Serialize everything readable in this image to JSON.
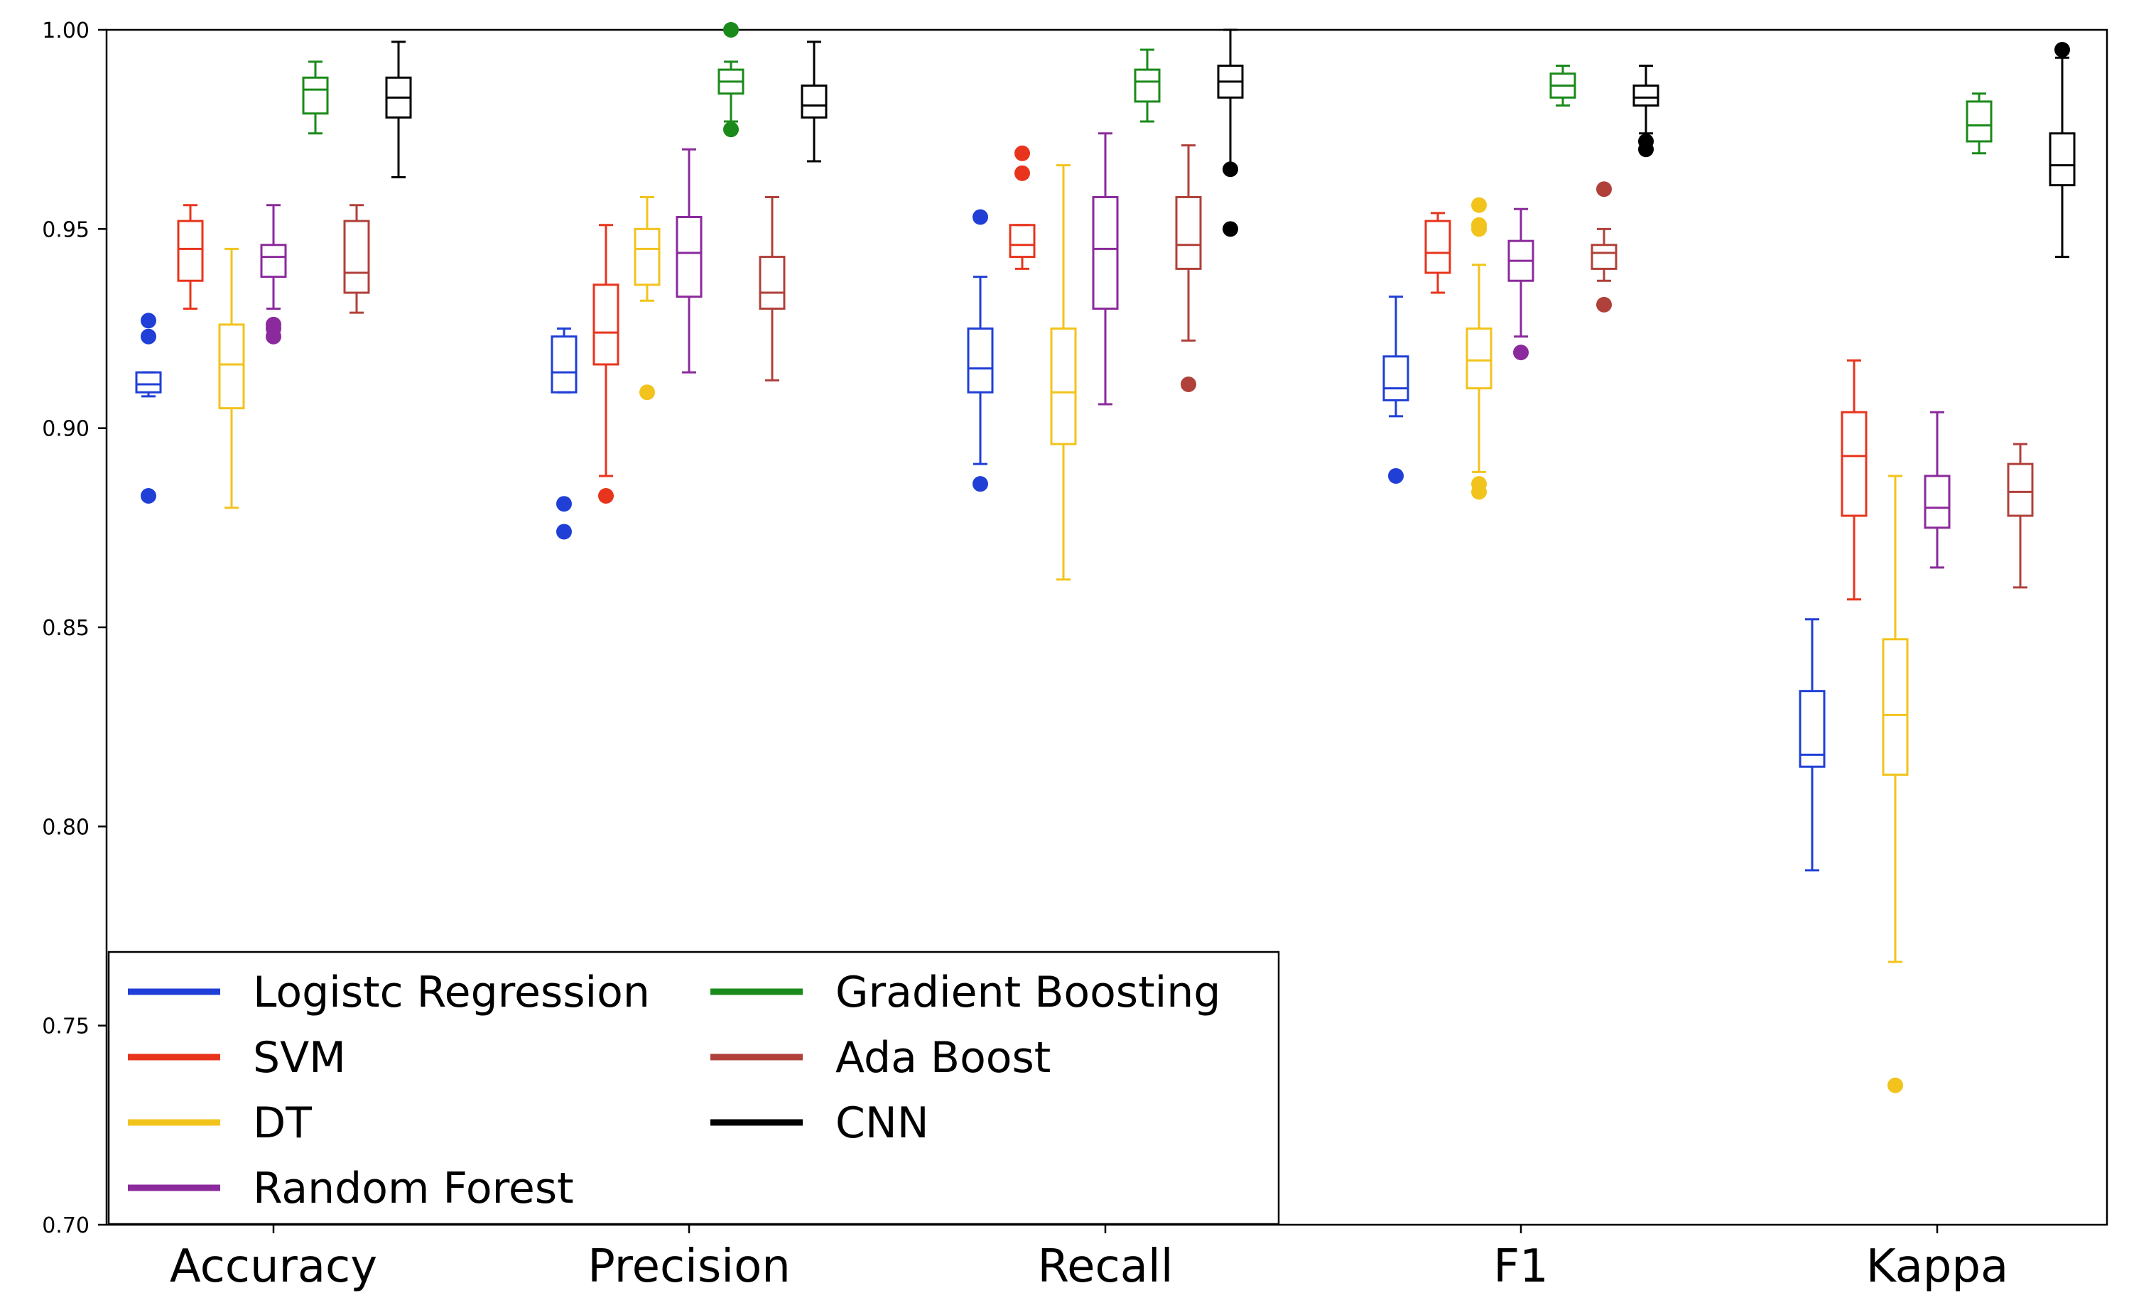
{
  "chart_data": {
    "type": "boxplot",
    "title": "",
    "xlabel": "",
    "ylabel": "",
    "ylim": [
      0.7,
      1.0
    ],
    "yticks": [
      "0.70",
      "0.75",
      "0.80",
      "0.85",
      "0.90",
      "0.95",
      "1.00"
    ],
    "categories": [
      "Accuracy",
      "Precision",
      "Recall",
      "F1",
      "Kappa"
    ],
    "legend_position": "lower-left",
    "series": [
      {
        "name": "Logistc Regression",
        "color": "#1f3fd6",
        "boxes": [
          {
            "whislo": 0.908,
            "q1": 0.909,
            "med": 0.911,
            "q3": 0.914,
            "whishi": 0.914,
            "fliers": [
              0.927,
              0.923,
              0.883
            ]
          },
          {
            "whislo": 0.909,
            "q1": 0.909,
            "med": 0.914,
            "q3": 0.923,
            "whishi": 0.925,
            "fliers": [
              0.881,
              0.874
            ]
          },
          {
            "whislo": 0.891,
            "q1": 0.909,
            "med": 0.915,
            "q3": 0.925,
            "whishi": 0.938,
            "fliers": [
              0.953,
              0.886
            ]
          },
          {
            "whislo": 0.903,
            "q1": 0.907,
            "med": 0.91,
            "q3": 0.918,
            "whishi": 0.933,
            "fliers": [
              0.888
            ]
          },
          {
            "whislo": 0.789,
            "q1": 0.815,
            "med": 0.818,
            "q3": 0.834,
            "whishi": 0.852,
            "fliers": []
          }
        ]
      },
      {
        "name": "SVM",
        "color": "#e8341c",
        "boxes": [
          {
            "whislo": 0.93,
            "q1": 0.937,
            "med": 0.945,
            "q3": 0.952,
            "whishi": 0.956,
            "fliers": []
          },
          {
            "whislo": 0.888,
            "q1": 0.916,
            "med": 0.924,
            "q3": 0.936,
            "whishi": 0.951,
            "fliers": [
              0.883
            ]
          },
          {
            "whislo": 0.94,
            "q1": 0.943,
            "med": 0.946,
            "q3": 0.951,
            "whishi": 0.951,
            "fliers": [
              0.969,
              0.964
            ]
          },
          {
            "whislo": 0.934,
            "q1": 0.939,
            "med": 0.944,
            "q3": 0.952,
            "whishi": 0.954,
            "fliers": []
          },
          {
            "whislo": 0.857,
            "q1": 0.878,
            "med": 0.893,
            "q3": 0.904,
            "whishi": 0.917,
            "fliers": []
          }
        ]
      },
      {
        "name": "DT",
        "color": "#f2c31c",
        "boxes": [
          {
            "whislo": 0.88,
            "q1": 0.905,
            "med": 0.916,
            "q3": 0.926,
            "whishi": 0.945,
            "fliers": []
          },
          {
            "whislo": 0.932,
            "q1": 0.936,
            "med": 0.945,
            "q3": 0.95,
            "whishi": 0.958,
            "fliers": [
              0.909
            ]
          },
          {
            "whislo": 0.862,
            "q1": 0.896,
            "med": 0.909,
            "q3": 0.925,
            "whishi": 0.966,
            "fliers": []
          },
          {
            "whislo": 0.889,
            "q1": 0.91,
            "med": 0.917,
            "q3": 0.925,
            "whishi": 0.941,
            "fliers": [
              0.956,
              0.951,
              0.95,
              0.886,
              0.884
            ]
          },
          {
            "whislo": 0.766,
            "q1": 0.813,
            "med": 0.828,
            "q3": 0.847,
            "whishi": 0.888,
            "fliers": [
              0.735
            ]
          }
        ]
      },
      {
        "name": "Random Forest",
        "color": "#8b2a9c",
        "boxes": [
          {
            "whislo": 0.93,
            "q1": 0.938,
            "med": 0.943,
            "q3": 0.946,
            "whishi": 0.956,
            "fliers": [
              0.926,
              0.925,
              0.923
            ]
          },
          {
            "whislo": 0.914,
            "q1": 0.933,
            "med": 0.944,
            "q3": 0.953,
            "whishi": 0.97,
            "fliers": []
          },
          {
            "whislo": 0.906,
            "q1": 0.93,
            "med": 0.945,
            "q3": 0.958,
            "whishi": 0.974,
            "fliers": []
          },
          {
            "whislo": 0.923,
            "q1": 0.937,
            "med": 0.942,
            "q3": 0.947,
            "whishi": 0.955,
            "fliers": [
              0.919
            ]
          },
          {
            "whislo": 0.865,
            "q1": 0.875,
            "med": 0.88,
            "q3": 0.888,
            "whishi": 0.904,
            "fliers": []
          }
        ]
      },
      {
        "name": "Gradient Boosting",
        "color": "#1a8a1a",
        "boxes": [
          {
            "whislo": 0.974,
            "q1": 0.979,
            "med": 0.985,
            "q3": 0.988,
            "whishi": 0.992,
            "fliers": []
          },
          {
            "whislo": 0.977,
            "q1": 0.984,
            "med": 0.987,
            "q3": 0.99,
            "whishi": 0.992,
            "fliers": [
              1.0,
              0.975
            ]
          },
          {
            "whislo": 0.977,
            "q1": 0.982,
            "med": 0.987,
            "q3": 0.99,
            "whishi": 0.995,
            "fliers": []
          },
          {
            "whislo": 0.981,
            "q1": 0.983,
            "med": 0.986,
            "q3": 0.989,
            "whishi": 0.991,
            "fliers": []
          },
          {
            "whislo": 0.969,
            "q1": 0.972,
            "med": 0.976,
            "q3": 0.982,
            "whishi": 0.984,
            "fliers": []
          }
        ]
      },
      {
        "name": "Ada Boost",
        "color": "#b0403a",
        "boxes": [
          {
            "whislo": 0.929,
            "q1": 0.934,
            "med": 0.939,
            "q3": 0.952,
            "whishi": 0.956,
            "fliers": []
          },
          {
            "whislo": 0.912,
            "q1": 0.93,
            "med": 0.934,
            "q3": 0.943,
            "whishi": 0.958,
            "fliers": []
          },
          {
            "whislo": 0.922,
            "q1": 0.94,
            "med": 0.946,
            "q3": 0.958,
            "whishi": 0.971,
            "fliers": [
              0.911
            ]
          },
          {
            "whislo": 0.937,
            "q1": 0.94,
            "med": 0.944,
            "q3": 0.946,
            "whishi": 0.95,
            "fliers": [
              0.96,
              0.931
            ]
          },
          {
            "whislo": 0.86,
            "q1": 0.878,
            "med": 0.884,
            "q3": 0.891,
            "whishi": 0.896,
            "fliers": []
          }
        ]
      },
      {
        "name": "CNN",
        "color": "#000000",
        "boxes": [
          {
            "whislo": 0.963,
            "q1": 0.978,
            "med": 0.983,
            "q3": 0.988,
            "whishi": 0.997,
            "fliers": []
          },
          {
            "whislo": 0.967,
            "q1": 0.978,
            "med": 0.981,
            "q3": 0.986,
            "whishi": 0.997,
            "fliers": []
          },
          {
            "whislo": 0.965,
            "q1": 0.983,
            "med": 0.987,
            "q3": 0.991,
            "whishi": 1.0,
            "fliers": [
              0.965,
              0.95
            ]
          },
          {
            "whislo": 0.974,
            "q1": 0.981,
            "med": 0.983,
            "q3": 0.986,
            "whishi": 0.991,
            "fliers": [
              0.972,
              0.97
            ]
          },
          {
            "whislo": 0.943,
            "q1": 0.961,
            "med": 0.966,
            "q3": 0.974,
            "whishi": 0.993,
            "fliers": [
              0.995
            ]
          }
        ]
      }
    ]
  }
}
